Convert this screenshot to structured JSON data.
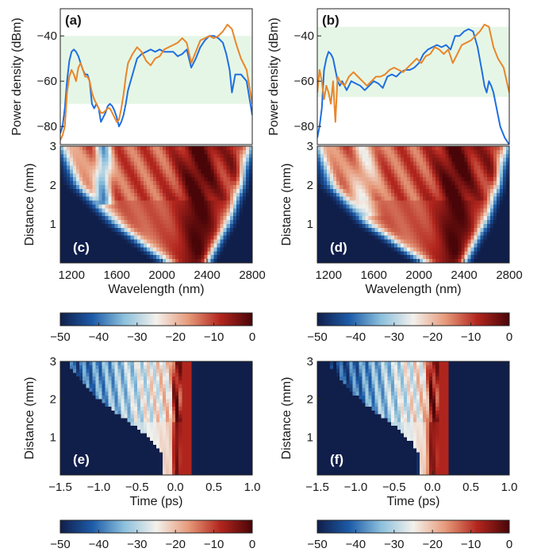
{
  "colors": {
    "blue_spectrum": "#1f6fe0",
    "orange_spectrum": "#e8862a",
    "band_shade": "#e6f6e6",
    "colormap": [
      "#101e4a",
      "#1d5ba8",
      "#8cc0dc",
      "#f3f1ec",
      "#e69a7a",
      "#b3261e",
      "#4a0508"
    ],
    "white_contours": "#ffffff"
  },
  "chart_data": [
    {
      "panel": "a",
      "type": "line",
      "panel_label": "(a)",
      "ylabel": "Power density (dBm)",
      "xlabel": "",
      "xlim": [
        1100,
        2800
      ],
      "ylim": [
        -88,
        -28
      ],
      "yticks": [
        "-40",
        "-60",
        "-80"
      ],
      "shaded_band": [
        -70,
        -40
      ],
      "series": [
        {
          "color": "blue",
          "x": [
            1100,
            1120,
            1140,
            1160,
            1180,
            1200,
            1220,
            1240,
            1260,
            1280,
            1300,
            1320,
            1340,
            1360,
            1380,
            1400,
            1420,
            1440,
            1460,
            1480,
            1500,
            1520,
            1540,
            1560,
            1580,
            1600,
            1620,
            1640,
            1660,
            1680,
            1700,
            1740,
            1780,
            1820,
            1860,
            1900,
            1940,
            1980,
            2020,
            2060,
            2100,
            2140,
            2180,
            2220,
            2260,
            2300,
            2340,
            2380,
            2420,
            2460,
            2500,
            2540,
            2570,
            2600,
            2620,
            2650,
            2700,
            2750,
            2800
          ],
          "y": [
            -83,
            -80,
            -72,
            -60,
            -51,
            -47,
            -46,
            -47,
            -49,
            -52,
            -55,
            -57,
            -57,
            -60,
            -70,
            -72,
            -70,
            -72,
            -78,
            -76,
            -74,
            -71,
            -70,
            -71,
            -73,
            -76,
            -80,
            -78,
            -75,
            -70,
            -64,
            -57,
            -50,
            -48,
            -47,
            -46,
            -47,
            -46,
            -47,
            -47,
            -47,
            -49,
            -48,
            -46,
            -54,
            -50,
            -45,
            -42,
            -40,
            -40,
            -41,
            -43,
            -48,
            -55,
            -65,
            -57,
            -57,
            -60,
            -75
          ]
        },
        {
          "color": "orange",
          "x": [
            1100,
            1120,
            1140,
            1160,
            1180,
            1200,
            1220,
            1240,
            1260,
            1280,
            1300,
            1320,
            1340,
            1360,
            1380,
            1400,
            1420,
            1440,
            1460,
            1480,
            1500,
            1520,
            1540,
            1560,
            1580,
            1600,
            1620,
            1640,
            1660,
            1680,
            1700,
            1740,
            1780,
            1820,
            1860,
            1900,
            1940,
            1980,
            2020,
            2060,
            2100,
            2140,
            2180,
            2220,
            2260,
            2300,
            2340,
            2380,
            2420,
            2460,
            2500,
            2540,
            2580,
            2620,
            2660,
            2700,
            2750,
            2800
          ],
          "y": [
            -86,
            -84,
            -80,
            -65,
            -58,
            -55,
            -57,
            -60,
            -54,
            -52,
            -55,
            -58,
            -58,
            -60,
            -65,
            -68,
            -70,
            -72,
            -74,
            -74,
            -73,
            -72,
            -72,
            -74,
            -76,
            -78,
            -77,
            -72,
            -66,
            -58,
            -52,
            -48,
            -45,
            -47,
            -51,
            -53,
            -50,
            -49,
            -46,
            -45,
            -44,
            -43,
            -41,
            -43,
            -52,
            -47,
            -42,
            -41,
            -40,
            -41,
            -40,
            -38,
            -35,
            -37,
            -44,
            -50,
            -55,
            -70
          ]
        }
      ]
    },
    {
      "panel": "b",
      "type": "line",
      "panel_label": "(b)",
      "ylabel": "Power density (dBm)",
      "xlabel": "",
      "xlim": [
        1100,
        2800
      ],
      "ylim": [
        -88,
        -28
      ],
      "yticks": [
        "-40",
        "-60",
        "-80"
      ],
      "shaded_band": [
        -67,
        -36
      ],
      "series": [
        {
          "color": "blue",
          "x": [
            1100,
            1120,
            1140,
            1160,
            1180,
            1200,
            1220,
            1240,
            1260,
            1280,
            1300,
            1320,
            1340,
            1360,
            1380,
            1400,
            1440,
            1480,
            1520,
            1560,
            1600,
            1640,
            1680,
            1720,
            1760,
            1800,
            1840,
            1880,
            1920,
            1960,
            2000,
            2040,
            2080,
            2120,
            2160,
            2200,
            2240,
            2280,
            2320,
            2360,
            2400,
            2440,
            2480,
            2520,
            2560,
            2580,
            2600,
            2620,
            2640,
            2660,
            2680,
            2720,
            2760,
            2800
          ],
          "y": [
            -85,
            -80,
            -72,
            -55,
            -50,
            -47,
            -48,
            -50,
            -55,
            -60,
            -62,
            -60,
            -62,
            -64,
            -62,
            -60,
            -61,
            -62,
            -64,
            -62,
            -60,
            -61,
            -63,
            -58,
            -57,
            -58,
            -56,
            -55,
            -55,
            -54,
            -52,
            -48,
            -46,
            -45,
            -44,
            -45,
            -44,
            -46,
            -40,
            -40,
            -38,
            -37,
            -38,
            -45,
            -56,
            -62,
            -65,
            -60,
            -62,
            -65,
            -70,
            -80,
            -85,
            -88
          ]
        },
        {
          "color": "orange",
          "x": [
            1100,
            1120,
            1140,
            1160,
            1180,
            1200,
            1220,
            1240,
            1260,
            1280,
            1300,
            1340,
            1380,
            1420,
            1460,
            1500,
            1540,
            1580,
            1620,
            1660,
            1700,
            1740,
            1780,
            1820,
            1860,
            1900,
            1940,
            1980,
            2020,
            2060,
            2100,
            2140,
            2180,
            2220,
            2260,
            2300,
            2340,
            2380,
            2420,
            2460,
            2500,
            2540,
            2580,
            2620,
            2660,
            2700,
            2750,
            2800
          ],
          "y": [
            -65,
            -55,
            -60,
            -68,
            -62,
            -65,
            -70,
            -60,
            -78,
            -58,
            -60,
            -62,
            -58,
            -56,
            -58,
            -60,
            -62,
            -60,
            -58,
            -58,
            -57,
            -55,
            -54,
            -55,
            -56,
            -54,
            -52,
            -50,
            -52,
            -49,
            -48,
            -45,
            -46,
            -48,
            -46,
            -52,
            -48,
            -44,
            -43,
            -42,
            -40,
            -38,
            -35,
            -36,
            -45,
            -50,
            -54,
            -65
          ]
        }
      ]
    },
    {
      "panel": "c",
      "type": "heatmap",
      "panel_label": "(c)",
      "xlabel": "Wavelength (nm)",
      "ylabel": "Distance (mm)",
      "xlim": [
        1100,
        2800
      ],
      "ylim": [
        0,
        3
      ],
      "xticks": [
        "1200",
        "1600",
        "2000",
        "2400",
        "2800"
      ],
      "yticks": [
        "1",
        "2",
        "3"
      ],
      "colorbar": {
        "range": [
          -50,
          0
        ],
        "ticks": [
          "−50",
          "−40",
          "−30",
          "−20",
          "−10",
          "0"
        ]
      }
    },
    {
      "panel": "d",
      "type": "heatmap",
      "panel_label": "(d)",
      "xlabel": "Wavelength (nm)",
      "ylabel": "Distance (mm)",
      "xlim": [
        1100,
        2800
      ],
      "ylim": [
        0,
        3
      ],
      "xticks": [
        "1200",
        "1600",
        "2000",
        "2400",
        "2800"
      ],
      "yticks": [
        "1",
        "2",
        "3"
      ],
      "colorbar": {
        "range": [
          -50,
          0
        ],
        "ticks": [
          "−50",
          "−40",
          "−30",
          "−20",
          "−10",
          "0"
        ]
      }
    },
    {
      "panel": "e",
      "type": "heatmap",
      "panel_label": "(e)",
      "xlabel": "Time (ps)",
      "ylabel": "Distance (mm)",
      "xlim": [
        -1.5,
        1.0
      ],
      "ylim": [
        0,
        3
      ],
      "xticks": [
        "−1.5",
        "−1.0",
        "−0.5",
        "0.0",
        "0.5",
        "1.0"
      ],
      "yticks": [
        "1",
        "2",
        "3"
      ],
      "colorbar": {
        "range": [
          -50,
          0
        ],
        "ticks": [
          "−50",
          "−40",
          "−30",
          "−20",
          "−10",
          "0"
        ]
      }
    },
    {
      "panel": "f",
      "type": "heatmap",
      "panel_label": "(f)",
      "xlabel": "Time (ps)",
      "ylabel": "Distance (mm)",
      "xlim": [
        -1.5,
        1.0
      ],
      "ylim": [
        0,
        3
      ],
      "xticks": [
        "−1.5",
        "−1.0",
        "−0.5",
        "0.0",
        "0.5",
        "1.0"
      ],
      "yticks": [
        "1",
        "2",
        "3"
      ],
      "colorbar": {
        "range": [
          -50,
          0
        ],
        "ticks": [
          "−50",
          "−40",
          "−30",
          "−20",
          "−10",
          "0"
        ]
      }
    }
  ]
}
